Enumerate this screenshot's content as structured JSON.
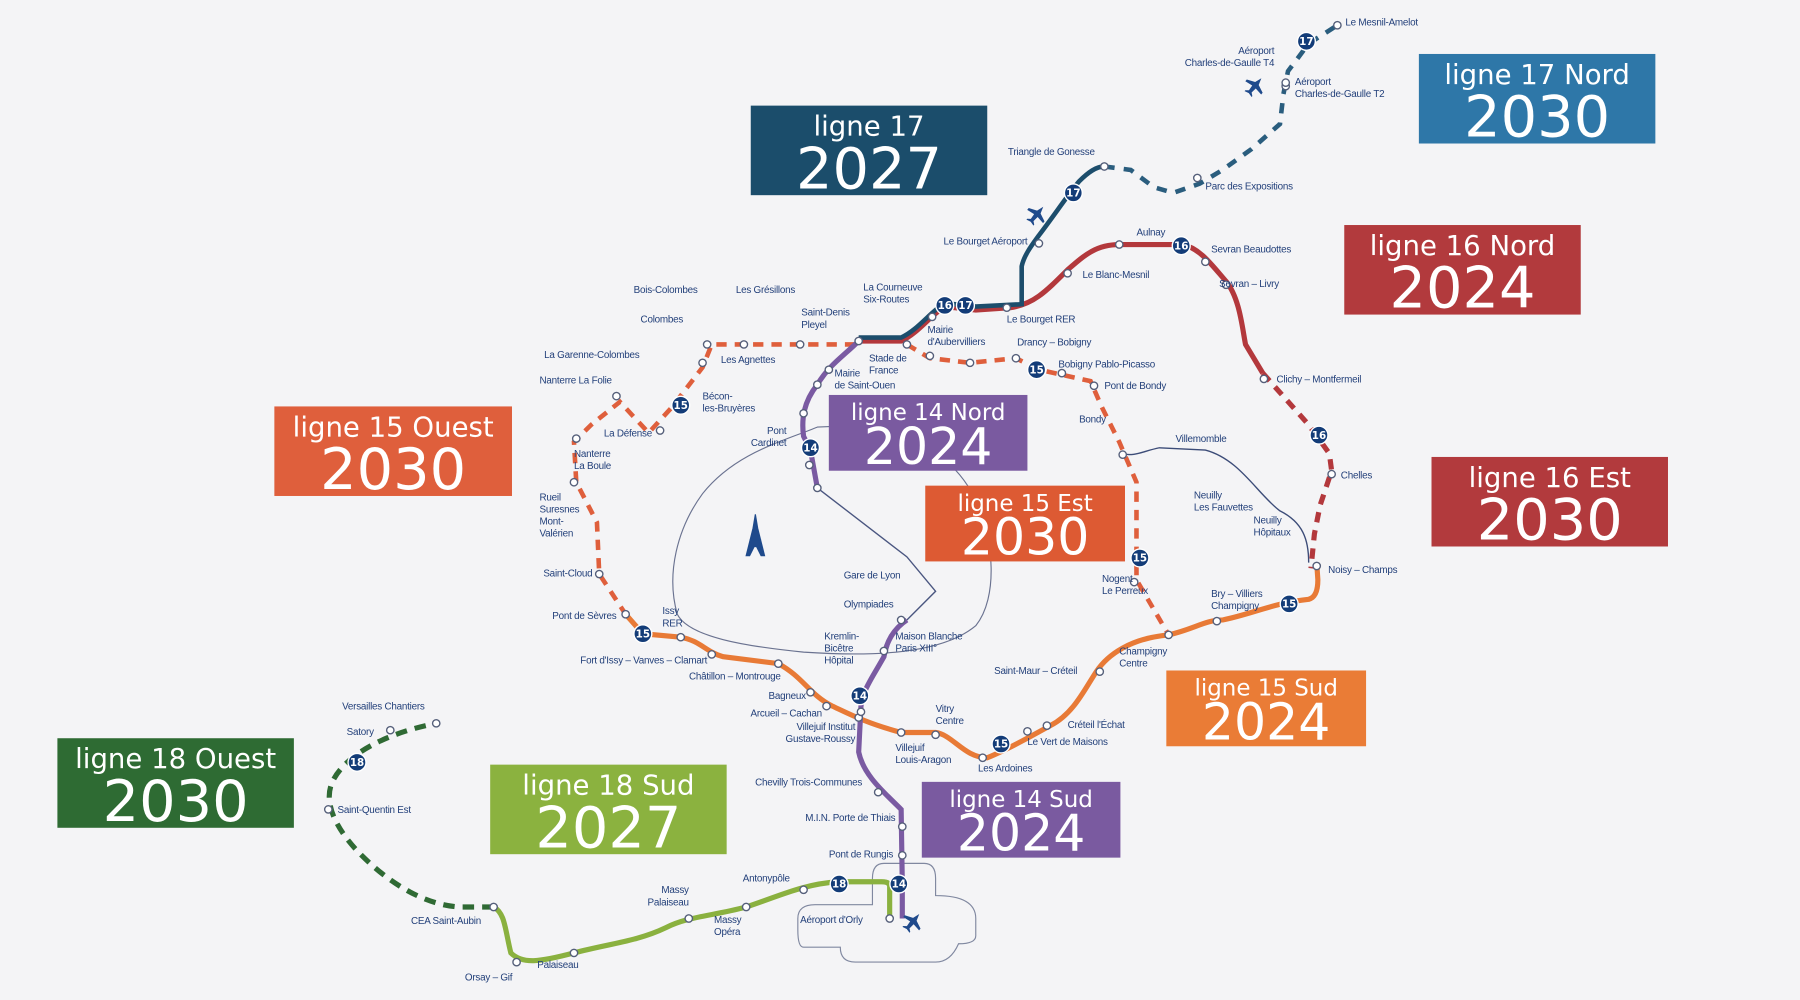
{
  "colors": {
    "line14": "#7a5aa2",
    "line15_dashed": "#df5f3c",
    "line15_sud": "#e87a36",
    "line16": "#b3383c",
    "line17": "#1c4d6c",
    "line18_sud": "#8ab13f",
    "line18_ouest": "#2f6a34",
    "badge": "#133c78",
    "text": "#23407a"
  },
  "labels": [
    {
      "id": "l17",
      "line": "ligne 17",
      "year": "2027",
      "color": "#1b4d6b"
    },
    {
      "id": "l17n",
      "line": "ligne 17 Nord",
      "year": "2030",
      "color": "#2e77a8"
    },
    {
      "id": "l16n",
      "line": "ligne 16 Nord",
      "year": "2024",
      "color": "#b23a3d"
    },
    {
      "id": "l16e",
      "line": "ligne 16 Est",
      "year": "2030",
      "color": "#b23a3d"
    },
    {
      "id": "l15o",
      "line": "ligne 15 Ouest",
      "year": "2030",
      "color": "#df5f3c"
    },
    {
      "id": "l14n",
      "line": "ligne 14 Nord",
      "year": "2024",
      "color": "#7a5aa0"
    },
    {
      "id": "l15e",
      "line": "ligne 15 Est",
      "year": "2030",
      "color": "#dd5a33"
    },
    {
      "id": "l15s",
      "line": "ligne 15 Sud",
      "year": "2024",
      "color": "#ea7c36"
    },
    {
      "id": "l14s",
      "line": "ligne 14 Sud",
      "year": "2024",
      "color": "#7a5aa0"
    },
    {
      "id": "l18o",
      "line": "ligne 18 Ouest",
      "year": "2030",
      "color": "#2e6b33"
    },
    {
      "id": "l18s",
      "line": "ligne 18 Sud",
      "year": "2027",
      "color": "#8bb23f"
    }
  ],
  "badges": [
    "17",
    "17",
    "17",
    "16",
    "16",
    "16",
    "15",
    "15",
    "15",
    "15",
    "15",
    "15",
    "14",
    "14",
    "14",
    "18",
    "18"
  ],
  "icons": [
    "airplane-icon",
    "airplane-icon",
    "airplane-icon",
    "eiffel-tower-icon"
  ],
  "stations": [
    {
      "lines": [
        "Le Mesnil-Amelot"
      ]
    },
    {
      "lines": [
        "Aéroport",
        "Charles-de-Gaulle T4"
      ]
    },
    {
      "lines": [
        "Aéroport",
        "Charles-de-Gaulle T2"
      ]
    },
    {
      "lines": [
        "Parc des Expositions"
      ]
    },
    {
      "lines": [
        "Triangle de Gonesse"
      ]
    },
    {
      "lines": [
        "Le Bourget Aéroport"
      ]
    },
    {
      "lines": [
        "Aulnay"
      ]
    },
    {
      "lines": [
        "Sevran Beaudottes"
      ]
    },
    {
      "lines": [
        "Sevran – Livry"
      ]
    },
    {
      "lines": [
        "Le Blanc-Mesnil"
      ]
    },
    {
      "lines": [
        "Le Bourget RER"
      ]
    },
    {
      "lines": [
        "La Courneuve",
        "Six-Routes"
      ]
    },
    {
      "lines": [
        "Saint-Denis",
        "Pleyel"
      ]
    },
    {
      "lines": [
        "Mairie",
        "d'Aubervilliers"
      ]
    },
    {
      "lines": [
        "Drancy – Bobigny"
      ]
    },
    {
      "lines": [
        "Bobigny Pablo-Picasso"
      ]
    },
    {
      "lines": [
        "Pont de Bondy"
      ]
    },
    {
      "lines": [
        "Bondy"
      ]
    },
    {
      "lines": [
        "Villemomble"
      ]
    },
    {
      "lines": [
        "Clichy – Montfermeil"
      ]
    },
    {
      "lines": [
        "Chelles"
      ]
    },
    {
      "lines": [
        "Neuilly",
        "Les Fauvettes"
      ]
    },
    {
      "lines": [
        "Neuilly",
        "Hôpitaux"
      ]
    },
    {
      "lines": [
        "Noisy – Champs"
      ]
    },
    {
      "lines": [
        "Nogent",
        "Le Perreux"
      ]
    },
    {
      "lines": [
        "Bry – Villiers",
        "Champigny"
      ]
    },
    {
      "lines": [
        "Champigny",
        "Centre"
      ]
    },
    {
      "lines": [
        "Saint-Maur – Créteil"
      ]
    },
    {
      "lines": [
        "Créteil l'Échat"
      ]
    },
    {
      "lines": [
        "Le Vert de Maisons"
      ]
    },
    {
      "lines": [
        "Les Ardoines"
      ]
    },
    {
      "lines": [
        "Vitry",
        "Centre"
      ]
    },
    {
      "lines": [
        "Villejuif",
        "Louis-Aragon"
      ]
    },
    {
      "lines": [
        "Villejuif Institut",
        "Gustave-Roussy"
      ]
    },
    {
      "lines": [
        "Arcueil – Cachan"
      ]
    },
    {
      "lines": [
        "Bagneux"
      ]
    },
    {
      "lines": [
        "Châtillon – Montrouge"
      ]
    },
    {
      "lines": [
        "Fort d'Issy – Vanves – Clamart"
      ]
    },
    {
      "lines": [
        "Issy",
        "RER"
      ]
    },
    {
      "lines": [
        "Pont de Sèvres"
      ]
    },
    {
      "lines": [
        "Saint-Cloud"
      ]
    },
    {
      "lines": [
        "Rueil",
        "Suresnes",
        "Mont-",
        "Valérien"
      ]
    },
    {
      "lines": [
        "Nanterre",
        "La Boule"
      ]
    },
    {
      "lines": [
        "La Défense"
      ]
    },
    {
      "lines": [
        "Nanterre La Folie"
      ]
    },
    {
      "lines": [
        "La Garenne-Colombes"
      ]
    },
    {
      "lines": [
        "Bécon-",
        "les-Bruyères"
      ]
    },
    {
      "lines": [
        "Colombes"
      ]
    },
    {
      "lines": [
        "Bois-Colombes"
      ]
    },
    {
      "lines": [
        "Les Grésillons"
      ]
    },
    {
      "lines": [
        "Les Agnettes"
      ]
    },
    {
      "lines": [
        "Stade de",
        "France"
      ]
    },
    {
      "lines": [
        "Mairie",
        "de Saint-Ouen"
      ]
    },
    {
      "lines": [
        "Pont",
        "Cardinet"
      ]
    },
    {
      "lines": [
        "Gare de Lyon"
      ]
    },
    {
      "lines": [
        "Olympiades"
      ]
    },
    {
      "lines": [
        "Kremlin-",
        "Bicêtre",
        "Hôpital"
      ]
    },
    {
      "lines": [
        "Maison Blanche",
        "Paris XIII°"
      ]
    },
    {
      "lines": [
        "Chevilly Trois-Communes"
      ]
    },
    {
      "lines": [
        "M.I.N. Porte de Thiais"
      ]
    },
    {
      "lines": [
        "Pont de Rungis"
      ]
    },
    {
      "lines": [
        "Aéroport d'Orly"
      ]
    },
    {
      "lines": [
        "Antonypôle"
      ]
    },
    {
      "lines": [
        "Massy",
        "Palaiseau"
      ]
    },
    {
      "lines": [
        "Massy",
        "Opéra"
      ]
    },
    {
      "lines": [
        "Palaiseau"
      ]
    },
    {
      "lines": [
        "Orsay – Gif"
      ]
    },
    {
      "lines": [
        "CEA Saint-Aubin"
      ]
    },
    {
      "lines": [
        "Saint-Quentin Est"
      ]
    },
    {
      "lines": [
        "Satory"
      ]
    },
    {
      "lines": [
        "Versailles Chantiers"
      ]
    }
  ]
}
